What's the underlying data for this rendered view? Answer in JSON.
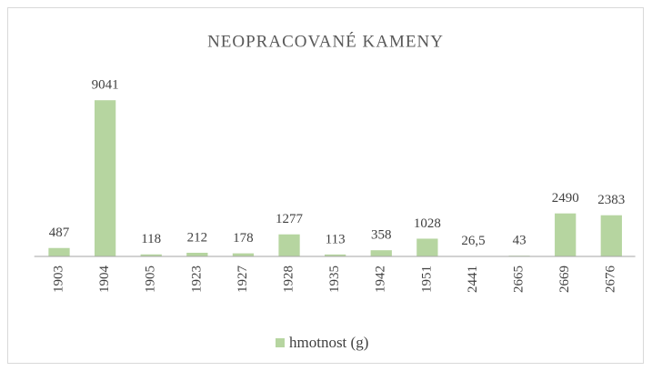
{
  "chart_data": {
    "type": "bar",
    "title": "NEOPRACOVANÉ KAMENY",
    "categories": [
      "1903",
      "1904",
      "1905",
      "1923",
      "1927",
      "1928",
      "1935",
      "1942",
      "1951",
      "2441",
      "2665",
      "2669",
      "2676"
    ],
    "series": [
      {
        "name": "hmotnost (g)",
        "color": "#b6d5a0",
        "values": [
          487,
          9041,
          118,
          212,
          178,
          1277,
          113,
          358,
          1028,
          26.5,
          43,
          2490,
          2383
        ],
        "value_labels": [
          "487",
          "9041",
          "118",
          "212",
          "178",
          "1277",
          "113",
          "358",
          "1028",
          "26,5",
          "43",
          "2490",
          "2383"
        ]
      }
    ],
    "ylim": [
      0,
      10000
    ],
    "legend": "bottom"
  }
}
